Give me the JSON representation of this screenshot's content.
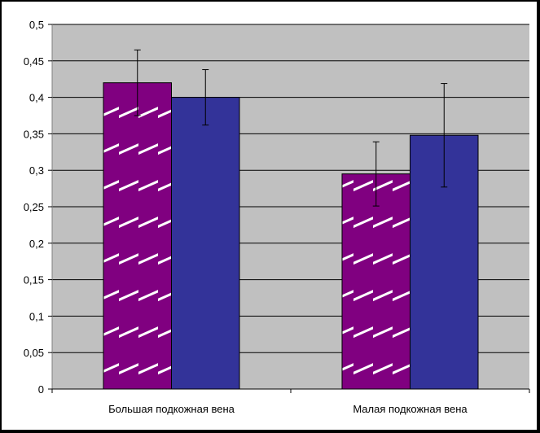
{
  "chart_data": {
    "type": "bar",
    "categories": [
      "Большая подкожная вена",
      "Малая подкожная вена"
    ],
    "series": [
      {
        "values": [
          0.42,
          0.295
        ],
        "errors": [
          0.045,
          0.044
        ],
        "color": "#800080",
        "pattern": "diagonal-white-stripes"
      },
      {
        "values": [
          0.4,
          0.348
        ],
        "errors": [
          0.038,
          0.071
        ],
        "color": "#333399",
        "pattern": "solid"
      }
    ],
    "ylim": [
      0,
      0.5
    ],
    "yticks": [
      0,
      0.05,
      0.1,
      0.15,
      0.2,
      0.25,
      0.3,
      0.35,
      0.4,
      0.45,
      0.5
    ],
    "ytick_labels": [
      "0",
      "0,05",
      "0,1",
      "0,15",
      "0,2",
      "0,25",
      "0,3",
      "0,35",
      "0,4",
      "0,45",
      "0,5"
    ],
    "grid": true,
    "plot_background": "#c0c0c0",
    "title": "",
    "xlabel": "",
    "ylabel": ""
  }
}
